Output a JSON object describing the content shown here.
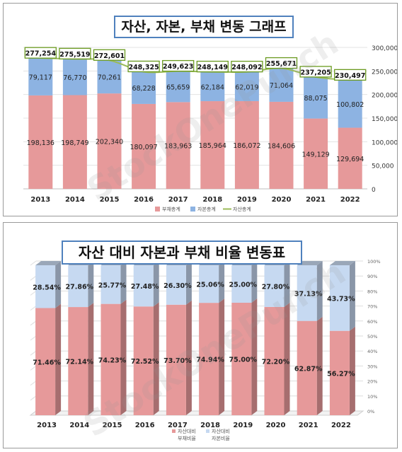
{
  "charts": [
    {
      "title": "자산, 자본, 부채 변동 그래프",
      "type": "bar",
      "stacked": true,
      "categories": [
        "2013",
        "2014",
        "2015",
        "2016",
        "2017",
        "2018",
        "2019",
        "2020",
        "2021",
        "2022"
      ],
      "series": [
        {
          "name": "부채총계",
          "color": "#e6999a",
          "values": [
            198136,
            198749,
            202340,
            180097,
            183963,
            185964,
            186072,
            184606,
            149129,
            129694
          ],
          "labels": [
            "198,136",
            "198,749",
            "202,340",
            "180,097",
            "183,963",
            "185,964",
            "186,072",
            "184,606",
            "149,129",
            "129,694"
          ]
        },
        {
          "name": "자본총계",
          "color": "#8db3e2",
          "values": [
            79117,
            76770,
            70261,
            68228,
            65659,
            62184,
            62019,
            71064,
            88075,
            100802
          ],
          "labels": [
            "79,117",
            "76,770",
            "70,261",
            "68,228",
            "65,659",
            "62,184",
            "62,019",
            "71,064",
            "88,075",
            "100,802"
          ]
        }
      ],
      "line_series": {
        "name": "자산총계",
        "color": "#9bbb59",
        "values": [
          277254,
          275519,
          272601,
          248325,
          249623,
          248149,
          248092,
          255671,
          237205,
          230497
        ],
        "labels": [
          "277,254",
          "275,519",
          "272,601",
          "248,325",
          "249,623",
          "248,149",
          "248,092",
          "255,671",
          "237,205",
          "230,497"
        ]
      },
      "y_axis": {
        "min": 0,
        "max": 300000,
        "ticks": [
          "0",
          "50,000",
          "100,000",
          "150,000",
          "200,000",
          "250,000",
          "300,000"
        ],
        "position": "right"
      },
      "legend": "bottom",
      "watermark": "StockOnePunch"
    },
    {
      "title": "자산 대비 자본과 부채 비율 변동표",
      "type": "bar",
      "stacked": true,
      "percent": true,
      "three_d": true,
      "categories": [
        "2013",
        "2014",
        "2015",
        "2016",
        "2017",
        "2018",
        "2019",
        "2020",
        "2021",
        "2022"
      ],
      "series": [
        {
          "name": "자산대비 부채비율",
          "name_lines": [
            "자산대비",
            "부채비율"
          ],
          "color": "#e6999a",
          "values": [
            71.46,
            72.14,
            74.23,
            72.52,
            73.7,
            74.94,
            75.0,
            72.2,
            62.87,
            56.27
          ],
          "labels": [
            "71.46%",
            "72.14%",
            "74.23%",
            "72.52%",
            "73.70%",
            "74.94%",
            "75.00%",
            "72.20%",
            "62.87%",
            "56.27%"
          ]
        },
        {
          "name": "자산대비 자본비율",
          "name_lines": [
            "자산대비",
            "자본비율"
          ],
          "color": "#c6d9f1",
          "values": [
            28.54,
            27.86,
            25.77,
            27.48,
            26.3,
            25.06,
            25.0,
            27.8,
            37.13,
            43.73
          ],
          "labels": [
            "28.54%",
            "27.86%",
            "25.77%",
            "27.48%",
            "26.30%",
            "25.06%",
            "25.00%",
            "27.80%",
            "37.13%",
            "43.73%"
          ]
        }
      ],
      "y_axis": {
        "min": 0,
        "max": 100,
        "ticks": [
          "0%",
          "10%",
          "20%",
          "30%",
          "40%",
          "50%",
          "60%",
          "70%",
          "80%",
          "90%",
          "100%"
        ],
        "position": "right"
      },
      "legend": "bottom",
      "watermark": "StockOnePunch"
    }
  ]
}
